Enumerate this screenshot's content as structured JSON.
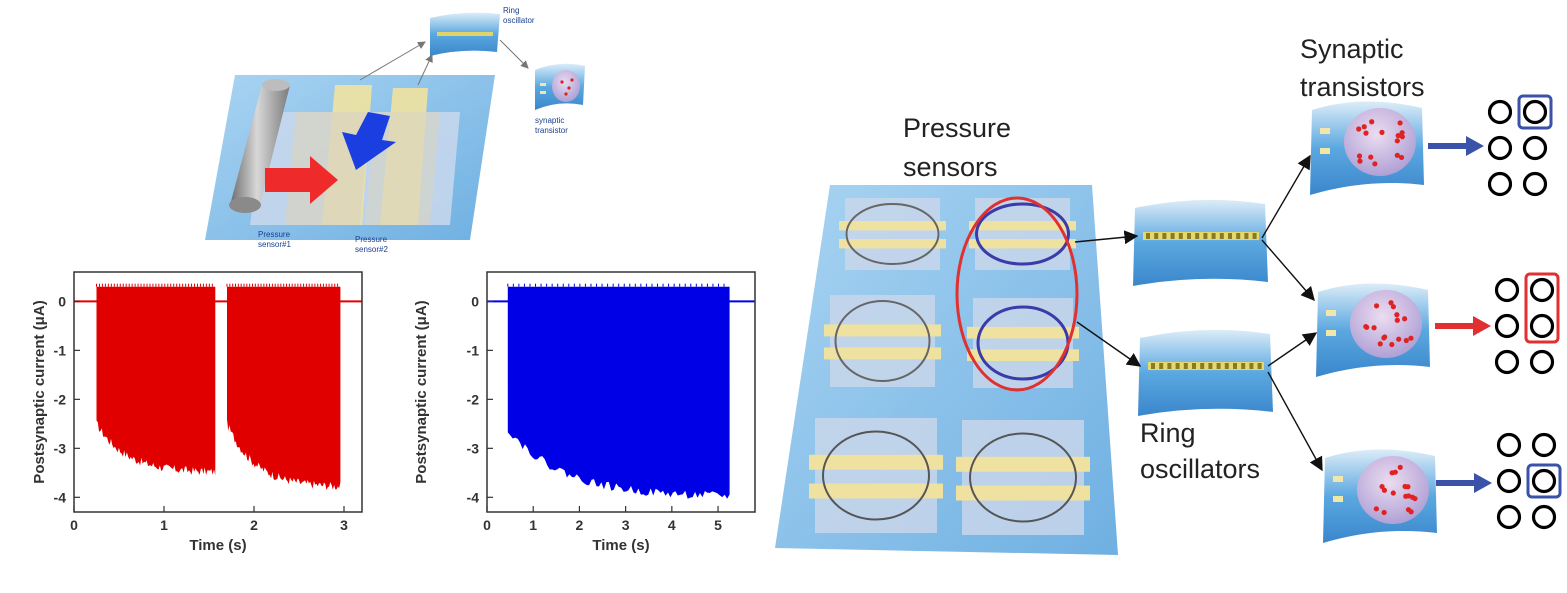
{
  "labels": {
    "ring_oscillator_small": [
      "Ring",
      "oscillator"
    ],
    "synaptic_transistor_small": [
      "synaptic",
      "transistor"
    ],
    "pressure_sensor_1": [
      "Pressure",
      "sensor#1"
    ],
    "pressure_sensor_2": [
      "Pressure",
      "sensor#2"
    ],
    "pressure_sensors": [
      "Pressure",
      "sensors"
    ],
    "synaptic_transistors": [
      "Synaptic",
      "transistors"
    ],
    "ring_oscillators": [
      "Ring",
      "oscillators"
    ]
  },
  "colors": {
    "red_trace": "#e00000",
    "blue_trace": "#0000e6",
    "substrate": "#8ec3ea",
    "electrode": "#f0e59a",
    "highlight_red": "#e03030",
    "highlight_blue": "#3a52a8"
  },
  "chart_data": [
    {
      "type": "line",
      "title": "",
      "xlabel": "Time (s)",
      "ylabel": "Postsynaptic current (μA)",
      "xlim": [
        0,
        3.2
      ],
      "ylim": [
        -4.3,
        0.6
      ],
      "xticks": [
        0,
        1,
        2,
        3
      ],
      "yticks": [
        0,
        -1,
        -2,
        -3,
        -4
      ],
      "series": [
        {
          "color": "#e00000",
          "bursts": [
            {
              "start": 0.25,
              "end": 1.57,
              "min_start": -2.5,
              "min_end": -3.5
            },
            {
              "start": 1.7,
              "end": 2.96,
              "min_start": -2.5,
              "min_end": -3.8
            }
          ],
          "max": 0.3,
          "baseline": 0
        }
      ]
    },
    {
      "type": "line",
      "title": "",
      "xlabel": "Time (s)",
      "ylabel": "Postsynaptic current (μA)",
      "xlim": [
        0,
        5.8
      ],
      "ylim": [
        -4.3,
        0.6
      ],
      "xticks": [
        0,
        1,
        2,
        3,
        4,
        5
      ],
      "yticks": [
        0,
        -1,
        -2,
        -3,
        -4
      ],
      "series": [
        {
          "color": "#0000e6",
          "bursts": [
            {
              "start": 0.45,
              "end": 5.25,
              "min_start": -2.6,
              "min_end": -4.0
            }
          ],
          "max": 0.3,
          "baseline": 0
        }
      ]
    }
  ],
  "output_grids": [
    {
      "highlight_color": "#3a52a8",
      "highlight_cells": [
        [
          0,
          1
        ]
      ],
      "arrow_color": "#3a52a8"
    },
    {
      "highlight_color": "#e03030",
      "highlight_cells": [
        [
          0,
          1
        ],
        [
          1,
          1
        ]
      ],
      "arrow_color": "#e03030"
    },
    {
      "highlight_color": "#3a52a8",
      "highlight_cells": [
        [
          1,
          1
        ]
      ],
      "arrow_color": "#3a52a8"
    }
  ]
}
